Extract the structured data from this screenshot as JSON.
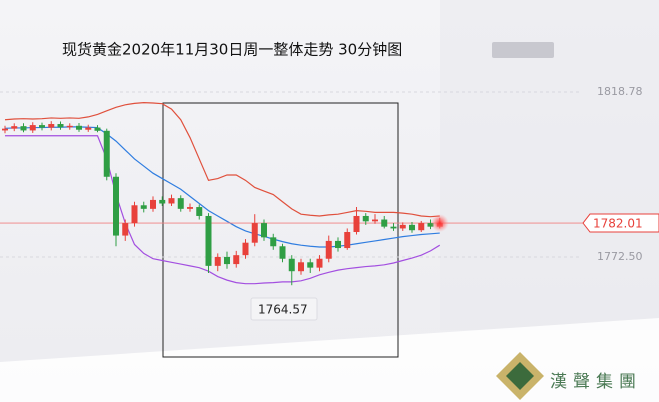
{
  "chart_data": {
    "type": "candlestick",
    "title": "现货黄金2020年11月30日周一整体走势  30分钟图",
    "watermark": "漢聲集團",
    "ylim": [
      1731.8,
      1844.6
    ],
    "yticks": [
      1818.78,
      {
        "value": 1772.5,
        "label": "1772.50"
      }
    ],
    "current_price": 1782.01,
    "low_label_index": 31,
    "up_color": "#e8413b",
    "down_color": "#2f9e44",
    "open": [
      1808.0,
      1808.5,
      1809.2,
      1808.0,
      1809.5,
      1808.8,
      1809.8,
      1808.9,
      1809.3,
      1808.2,
      1808.8,
      1807.9,
      1795.0,
      1778.5,
      1782.0,
      1787.0,
      1786.0,
      1788.5,
      1787.5,
      1789.0,
      1786.0,
      1786.5,
      1784.0,
      1770.0,
      1772.5,
      1770.5,
      1773.0,
      1776.5,
      1782.0,
      1778.0,
      1775.5,
      1772.0,
      1768.5,
      1771.0,
      1769.5,
      1772.0,
      1777.0,
      1775.0,
      1779.5,
      1784.0,
      1782.5,
      1783.0,
      1781.0,
      1780.5,
      1781.5,
      1780.0,
      1782.0,
      1781.0
    ],
    "high": [
      1809.3,
      1810.0,
      1810.0,
      1810.3,
      1810.2,
      1810.6,
      1810.5,
      1810.0,
      1810.1,
      1809.6,
      1809.5,
      1808.5,
      1796.0,
      1783.0,
      1788.0,
      1788.0,
      1789.5,
      1789.5,
      1790.0,
      1789.8,
      1787.5,
      1787.2,
      1784.8,
      1773.5,
      1774.0,
      1774.2,
      1777.5,
      1784.5,
      1783.0,
      1779.0,
      1776.2,
      1773.0,
      1772.0,
      1772.0,
      1773.0,
      1778.5,
      1778.0,
      1780.5,
      1786.5,
      1784.8,
      1784.5,
      1784.0,
      1782.0,
      1782.2,
      1782.3,
      1782.6,
      1783.0,
      1783.5
    ],
    "low": [
      1807.2,
      1807.8,
      1807.5,
      1807.3,
      1808.0,
      1808.0,
      1808.2,
      1808.2,
      1807.6,
      1807.6,
      1807.5,
      1794.0,
      1775.5,
      1777.0,
      1781.0,
      1785.0,
      1785.2,
      1786.8,
      1786.8,
      1785.2,
      1785.2,
      1783.0,
      1768.0,
      1768.5,
      1769.2,
      1769.5,
      1772.0,
      1775.5,
      1777.0,
      1774.5,
      1771.0,
      1764.57,
      1767.5,
      1768.0,
      1768.5,
      1771.0,
      1774.0,
      1774.5,
      1778.8,
      1781.5,
      1781.8,
      1780.5,
      1779.8,
      1779.8,
      1779.3,
      1779.5,
      1780.3,
      1780.5
    ],
    "close": [
      1808.5,
      1809.2,
      1808.0,
      1809.5,
      1808.8,
      1809.8,
      1808.9,
      1809.3,
      1808.2,
      1808.8,
      1807.9,
      1795.0,
      1778.5,
      1782.0,
      1787.0,
      1786.0,
      1788.5,
      1787.5,
      1789.0,
      1786.0,
      1786.5,
      1784.0,
      1770.0,
      1772.5,
      1770.5,
      1773.0,
      1776.5,
      1782.0,
      1778.0,
      1775.5,
      1772.0,
      1768.5,
      1771.0,
      1769.5,
      1772.0,
      1777.0,
      1775.0,
      1779.5,
      1784.0,
      1782.5,
      1783.0,
      1781.0,
      1780.5,
      1781.5,
      1780.0,
      1782.0,
      1781.0,
      1782.01
    ],
    "lines": [
      {
        "color": "#e0503c",
        "values": [
          1811.0,
          1811.2,
          1811.3,
          1811.2,
          1811.3,
          1811.5,
          1811.4,
          1811.5,
          1811.4,
          1811.8,
          1812.5,
          1813.5,
          1814.5,
          1815.2,
          1815.6,
          1815.8,
          1815.7,
          1815.5,
          1814.0,
          1811.0,
          1806.0,
          1800.0,
          1794.0,
          1794.5,
          1795.5,
          1795.5,
          1794.0,
          1792.0,
          1791.0,
          1790.0,
          1788.0,
          1786.0,
          1784.5,
          1784.2,
          1784.0,
          1784.3,
          1784.5,
          1785.0,
          1785.5,
          1785.3,
          1785.0,
          1785.0,
          1785.0,
          1784.8,
          1784.5,
          1784.0,
          1783.8,
          1784.0
        ]
      },
      {
        "color": "#a34fe0",
        "values": [
          1806.5,
          1806.5,
          1806.5,
          1806.5,
          1806.5,
          1806.5,
          1806.5,
          1806.5,
          1806.5,
          1806.5,
          1806.5,
          1800.0,
          1790.0,
          1782.0,
          1776.0,
          1773.5,
          1772.0,
          1771.5,
          1771.0,
          1770.5,
          1770.0,
          1769.5,
          1768.5,
          1767.0,
          1766.0,
          1765.3,
          1765.0,
          1765.0,
          1765.2,
          1765.3,
          1765.5,
          1765.5,
          1765.8,
          1766.5,
          1767.5,
          1768.2,
          1768.8,
          1769.2,
          1769.5,
          1769.8,
          1770.0,
          1770.3,
          1770.8,
          1771.5,
          1772.2,
          1773.0,
          1774.2,
          1775.8
        ]
      },
      {
        "color": "#2f7de0",
        "values": [
          1808.6,
          1808.7,
          1808.7,
          1808.8,
          1808.8,
          1808.9,
          1808.9,
          1809.0,
          1809.0,
          1808.9,
          1808.8,
          1807.0,
          1805.0,
          1802.5,
          1800.0,
          1798.0,
          1796.0,
          1794.5,
          1793.0,
          1791.5,
          1789.5,
          1787.5,
          1785.5,
          1784.0,
          1782.5,
          1781.0,
          1779.8,
          1779.0,
          1778.3,
          1777.5,
          1776.8,
          1776.2,
          1775.8,
          1775.5,
          1775.3,
          1775.3,
          1775.5,
          1775.8,
          1776.2,
          1776.6,
          1777.0,
          1777.4,
          1777.8,
          1778.2,
          1778.5,
          1778.8,
          1779.0,
          1779.2
        ]
      }
    ]
  }
}
